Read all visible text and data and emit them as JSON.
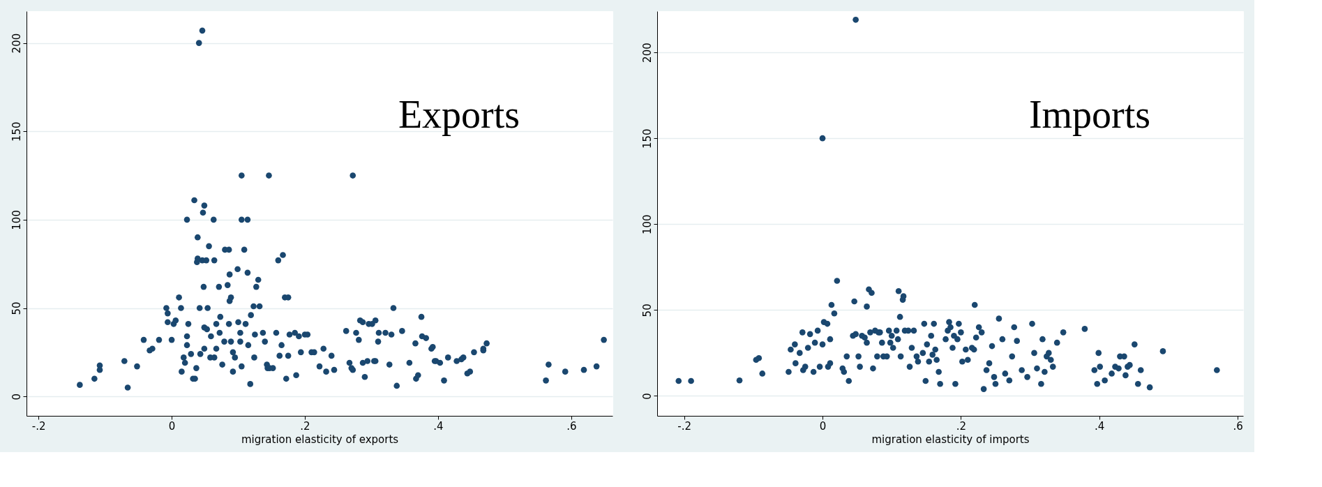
{
  "chart_data": [
    {
      "type": "scatter",
      "xlabel": "migration elasticity of exports",
      "annotations": [
        "Exports"
      ],
      "color": "#1a476f",
      "marker": "circle",
      "grid": "y",
      "xlim": [
        -0.218,
        0.662
      ],
      "ylim": [
        -11,
        218
      ],
      "xticks": [
        {
          "value": -0.2,
          "label": "-.2"
        },
        0,
        {
          "value": 0.2,
          "label": ".2"
        },
        {
          "value": 0.4,
          "label": ".4"
        },
        {
          "value": 0.6,
          "label": ".6"
        }
      ],
      "yticks": [
        0,
        50,
        100,
        150,
        200
      ],
      "x": [
        -0.138,
        -0.116,
        -0.108,
        -0.108,
        -0.071,
        -0.066,
        -0.052,
        -0.042,
        -0.033,
        -0.029,
        -0.019,
        -0.008,
        -0.006,
        -0.006,
        0,
        0.003,
        0.006,
        0.011,
        0.014,
        0.015,
        0.018,
        0.02,
        0.023,
        0.023,
        0.023,
        0.025,
        0.029,
        0.032,
        0.035,
        0.034,
        0.037,
        0.038,
        0.039,
        0.039,
        0.041,
        0.046,
        0.042,
        0.043,
        0.047,
        0.049,
        0.048,
        0.046,
        0.052,
        0.049,
        0.049,
        0.053,
        0.054,
        0.056,
        0.058,
        0.059,
        0.063,
        0.064,
        0.064,
        0.067,
        0.067,
        0.071,
        0.073,
        0.072,
        0.076,
        0.079,
        0.08,
        0.086,
        0.084,
        0.087,
        0.087,
        0.089,
        0.086,
        0.089,
        0.092,
        0.095,
        0.092,
        0.099,
        0.1,
        0.103,
        0.103,
        0.105,
        0.105,
        0.105,
        0.109,
        0.111,
        0.114,
        0.114,
        0.115,
        0.118,
        0.119,
        0.123,
        0.125,
        0.124,
        0.127,
        0.13,
        0.132,
        0.137,
        0.14,
        0.143,
        0.144,
        0.146,
        0.147,
        0.152,
        0.157,
        0.16,
        0.167,
        0.162,
        0.165,
        0.17,
        0.175,
        0.172,
        0.175,
        0.177,
        0.185,
        0.187,
        0.191,
        0.194,
        0.2,
        0.204,
        0.21,
        0.214,
        0.222,
        0.228,
        0.232,
        0.24,
        0.244,
        0.262,
        0.267,
        0.27,
        0.272,
        0.272,
        0.277,
        0.281,
        0.283,
        0.287,
        0.287,
        0.29,
        0.294,
        0.296,
        0.301,
        0.304,
        0.306,
        0.306,
        0.31,
        0.311,
        0.321,
        0.327,
        0.33,
        0.333,
        0.338,
        0.346,
        0.357,
        0.366,
        0.367,
        0.37,
        0.375,
        0.376,
        0.382,
        0.39,
        0.392,
        0.395,
        0.397,
        0.403,
        0.409,
        0.415,
        0.428,
        0.435,
        0.438,
        0.444,
        0.448,
        0.454,
        0.468,
        0.473,
        0.468,
        0.562,
        0.566,
        0.591,
        0.619,
        0.638,
        0.649
      ],
      "values": [
        6.5,
        10,
        17.5,
        15,
        20,
        5,
        17,
        32,
        26,
        27,
        32,
        50,
        47,
        42,
        32,
        41,
        43,
        56,
        50,
        14,
        22,
        19,
        29,
        34,
        100,
        41,
        24,
        10,
        10,
        111,
        16,
        76,
        90,
        78,
        200,
        207,
        50,
        24,
        104,
        108,
        62,
        77,
        77,
        39,
        27,
        38,
        50,
        85,
        22,
        34,
        100,
        77,
        22,
        27,
        41,
        62,
        45,
        36,
        18,
        31,
        83,
        83,
        63,
        69,
        54,
        56,
        41,
        31,
        25,
        22,
        14,
        72,
        42,
        36,
        31,
        17,
        125,
        100,
        83,
        41,
        100,
        70,
        29,
        7,
        46,
        51,
        35,
        22,
        62,
        66,
        51,
        36,
        31,
        18,
        16,
        125,
        16,
        16,
        36,
        77,
        80,
        23,
        29,
        56,
        56,
        10,
        23,
        35,
        36,
        12,
        34,
        25,
        35,
        35,
        25,
        25,
        17,
        27,
        14,
        23,
        15,
        37,
        19,
        16,
        15,
        125,
        36,
        32,
        43,
        42,
        19,
        11,
        20,
        41,
        41,
        20,
        20,
        43,
        31,
        36,
        36,
        18,
        35,
        50,
        6,
        37,
        19,
        30,
        10,
        12,
        45,
        34,
        33,
        27,
        28,
        20,
        20,
        19,
        9,
        22,
        20,
        21,
        22,
        13,
        14,
        25,
        27,
        30,
        26,
        9,
        18,
        14,
        15,
        17,
        32
      ]
    },
    {
      "type": "scatter",
      "xlabel": "migration elasticity of imports",
      "annotations": [
        "Imports"
      ],
      "color": "#1a476f",
      "marker": "circle",
      "grid": "y",
      "xlim": [
        -0.239,
        0.608
      ],
      "ylim": [
        -11.6,
        224
      ],
      "xticks": [
        {
          "value": -0.2,
          "label": "-.2"
        },
        0,
        {
          "value": 0.2,
          "label": ".2"
        },
        {
          "value": 0.4,
          "label": ".4"
        },
        {
          "value": 0.6,
          "label": ".6"
        }
      ],
      "yticks": [
        0,
        50,
        100,
        150,
        200
      ],
      "x": [
        -0.208,
        -0.19,
        -0.12,
        -0.096,
        -0.092,
        -0.087,
        -0.049,
        -0.046,
        -0.04,
        -0.039,
        -0.033,
        -0.029,
        -0.028,
        -0.025,
        -0.021,
        -0.018,
        -0.013,
        -0.011,
        -0.007,
        -0.004,
        0,
        0.002,
        0.007,
        0.011,
        0.011,
        0.013,
        0,
        0.008,
        0.017,
        0.021,
        0.029,
        0.031,
        0.035,
        0.038,
        0.044,
        0.046,
        0.048,
        0.048,
        0.052,
        0.054,
        0.057,
        0.061,
        0.064,
        0.064,
        0.067,
        0.069,
        0.071,
        0.073,
        0.076,
        0.079,
        0.081,
        0.083,
        0.086,
        0.088,
        0.093,
        0.096,
        0.098,
        0.1,
        0.102,
        0.107,
        0.109,
        0.11,
        0.112,
        0.113,
        0.116,
        0.117,
        0.119,
        0.124,
        0.126,
        0.129,
        0.132,
        0.136,
        0.138,
        0.145,
        0.147,
        0.149,
        0.151,
        0.154,
        0.157,
        0.159,
        0.161,
        0.163,
        0.165,
        0.168,
        0.17,
        0.178,
        0.181,
        0.183,
        0.185,
        0.188,
        0.19,
        0.192,
        0.195,
        0.197,
        0.2,
        0.202,
        0.207,
        0.21,
        0.216,
        0.219,
        0.22,
        0.222,
        0.226,
        0.23,
        0.233,
        0.237,
        0.241,
        0.245,
        0.248,
        0.25,
        0.255,
        0.26,
        0.264,
        0.27,
        0.274,
        0.277,
        0.281,
        0.288,
        0.296,
        0.303,
        0.306,
        0.31,
        0.316,
        0.318,
        0.321,
        0.324,
        0.327,
        0.33,
        0.333,
        0.339,
        0.348,
        0.379,
        0.393,
        0.397,
        0.399,
        0.401,
        0.408,
        0.418,
        0.423,
        0.428,
        0.43,
        0.436,
        0.438,
        0.441,
        0.444,
        0.451,
        0.456,
        0.46,
        0.473,
        0.492,
        0.57
      ],
      "values": [
        8.7,
        8.7,
        9,
        21,
        22,
        13,
        14,
        27,
        30,
        19,
        25,
        37,
        15,
        17,
        28,
        36,
        14,
        31,
        38,
        17,
        30,
        43,
        42,
        33,
        19,
        53,
        150,
        17,
        48,
        67,
        16,
        14,
        23,
        8.7,
        35,
        55,
        36,
        219,
        23,
        17,
        35,
        34,
        31,
        52,
        62,
        37,
        60,
        16,
        38,
        23,
        37,
        37,
        31,
        23,
        23,
        38,
        31,
        35,
        28,
        38,
        33,
        61,
        46,
        23,
        56,
        58,
        38,
        38,
        17,
        28,
        38,
        23,
        20,
        25,
        42,
        8.7,
        30,
        20,
        35,
        24,
        42,
        27,
        21,
        14,
        7,
        33,
        38,
        43,
        40,
        28,
        35,
        7,
        33,
        42,
        37,
        20,
        27,
        21,
        28,
        27,
        53,
        34,
        40,
        37,
        4,
        15,
        19,
        29,
        11,
        7,
        45,
        33,
        13,
        9,
        23,
        40,
        32,
        15,
        11,
        42,
        25,
        16,
        7,
        33,
        14,
        23,
        25,
        21,
        17,
        31,
        37,
        39,
        15,
        7,
        25,
        17,
        9,
        13,
        17,
        16,
        23,
        23,
        12,
        17,
        18,
        30,
        7,
        15,
        5,
        26,
        15
      ]
    }
  ]
}
